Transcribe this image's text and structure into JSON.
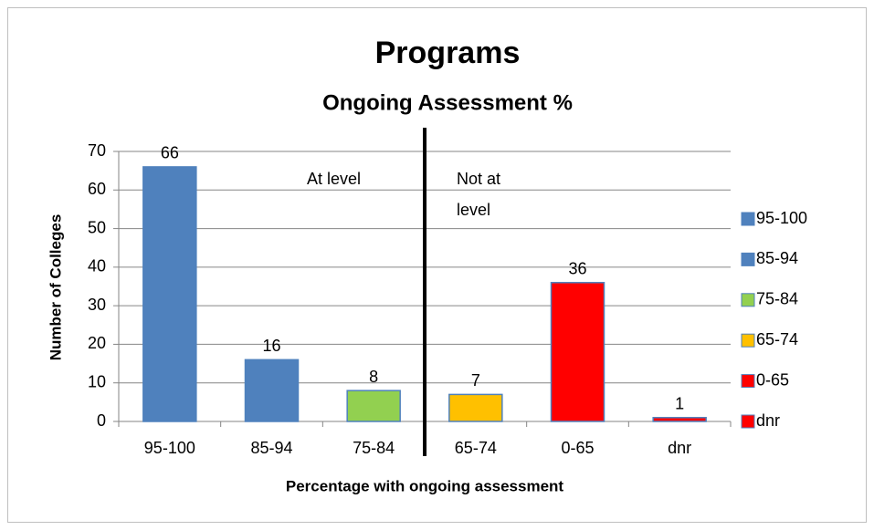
{
  "chart_data": {
    "type": "bar",
    "title": "Programs",
    "subtitle": "Ongoing Assessment %",
    "x_label": "Percentage with ongoing assessment",
    "y_label": "Number of Colleges",
    "categories": [
      "95-100",
      "85-94",
      "75-84",
      "65-74",
      "0-65",
      "dnr"
    ],
    "values": [
      66,
      16,
      8,
      7,
      36,
      1
    ],
    "colors": [
      "#4f81bd",
      "#4f81bd",
      "#92d050",
      "#ffc000",
      "#ff0000",
      "#ff0000"
    ],
    "ylim": [
      0,
      70
    ],
    "yticks": [
      0,
      10,
      20,
      30,
      40,
      50,
      60,
      70
    ],
    "grid": true,
    "legend": "right",
    "annotations": [
      "At level",
      [
        "Not at",
        "level"
      ]
    ]
  }
}
